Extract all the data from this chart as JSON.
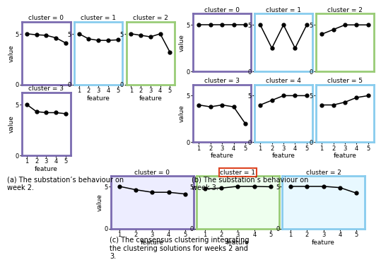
{
  "week2": {
    "clusters": [
      "0",
      "1",
      "2",
      "3"
    ],
    "border_colors": [
      "#7b6bb0",
      "#88ccee",
      "#99cc77",
      "#7b6bb0"
    ],
    "data": [
      [
        5.0,
        4.9,
        4.85,
        4.6,
        4.1
      ],
      [
        5.0,
        4.5,
        4.35,
        4.35,
        4.4
      ],
      [
        5.0,
        4.85,
        4.7,
        5.0,
        3.2
      ],
      [
        5.0,
        4.3,
        4.2,
        4.2,
        4.1
      ]
    ]
  },
  "week3": {
    "clusters": [
      "0",
      "1",
      "2",
      "3",
      "4",
      "5"
    ],
    "border_colors": [
      "#7b6bb0",
      "#88ccee",
      "#99cc77",
      "#7b6bb0",
      "#88ccee",
      "#88ccee"
    ],
    "data": [
      [
        5.0,
        5.0,
        5.0,
        5.0,
        5.0
      ],
      [
        5.0,
        2.5,
        5.0,
        2.5,
        5.0
      ],
      [
        4.0,
        4.5,
        5.0,
        5.0,
        5.0
      ],
      [
        4.0,
        3.8,
        4.0,
        3.8,
        2.0
      ],
      [
        4.0,
        4.5,
        5.0,
        5.0,
        5.0
      ],
      [
        4.0,
        4.0,
        4.3,
        4.8,
        5.0
      ]
    ]
  },
  "consensus": {
    "clusters": [
      "0",
      "1",
      "2"
    ],
    "spine_colors": [
      "#7b6bb0",
      "#99cc77",
      "#88ccee"
    ],
    "title_box_colors": [
      null,
      "#dd4422",
      null
    ],
    "bg_colors": [
      "#ededff",
      "#eeffee",
      "#e8f8ff"
    ],
    "data": [
      [
        5.0,
        4.6,
        4.3,
        4.3,
        4.1
      ],
      [
        4.7,
        4.8,
        5.0,
        5.0,
        4.95
      ],
      [
        5.0,
        5.0,
        5.0,
        4.85,
        4.2
      ]
    ]
  },
  "features": [
    1,
    2,
    3,
    4,
    5
  ],
  "ylim": [
    0,
    6.2
  ],
  "yticks": [
    0,
    5
  ],
  "caption_a": "(a) The substation’s behaviour on\nweek 2.",
  "caption_b": "(b) The substation’s behaviour on\nweek 3.",
  "caption_c": "(c) The consensus clustering integrating\nthe clustering solutions for weeks 2 and\n3."
}
